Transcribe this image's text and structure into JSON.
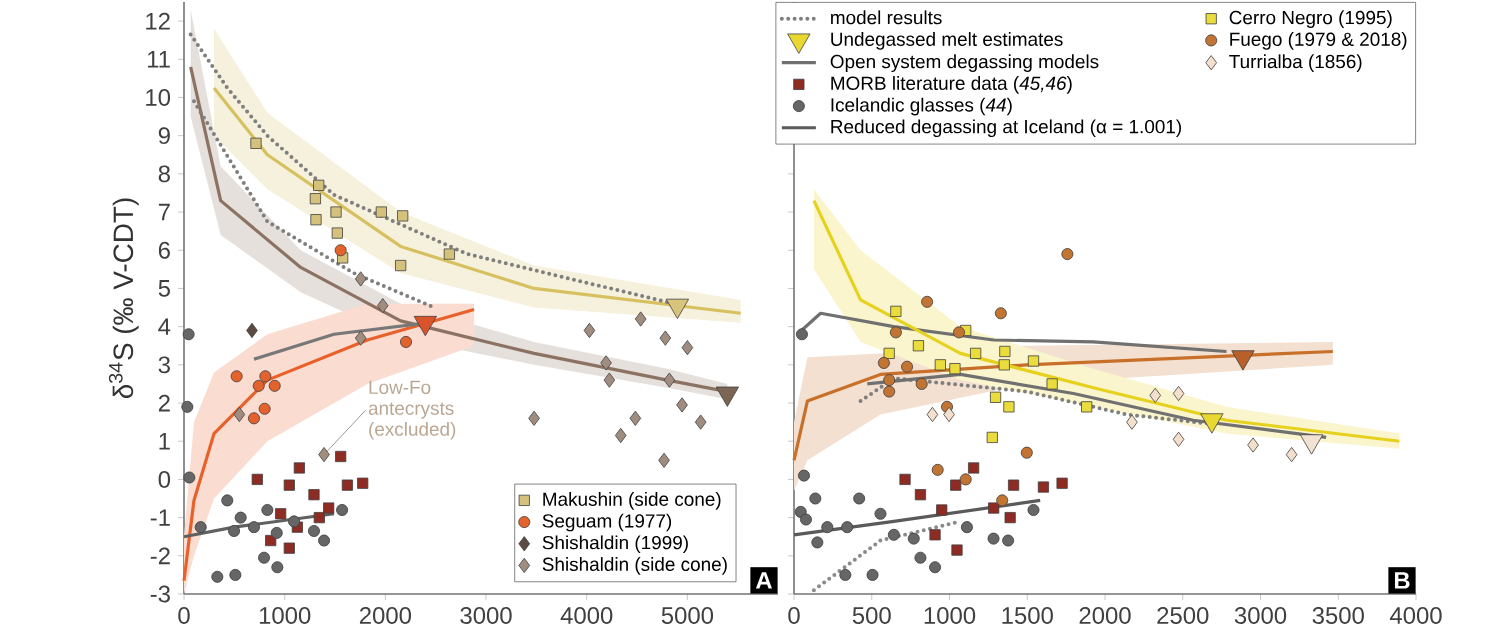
{
  "chart_data": [
    {
      "type": "scatter",
      "ylabel": "δ$^{34}$S (‰ V-CDT)",
      "xlim": [
        0,
        5900
      ],
      "ylim": [
        -3,
        12.5
      ],
      "xticks": [
        0,
        1000,
        2000,
        3000,
        4000,
        5000
      ],
      "yticks": [
        -3,
        -2,
        -1,
        0,
        1,
        2,
        3,
        4,
        5,
        6,
        7,
        8,
        9,
        10,
        11,
        12
      ],
      "legend": "bottom right",
      "annotations": [
        {
          "text": "Low-Fo antecrysts (excluded)",
          "x": 1391,
          "y": 0.65
        },
        "A"
      ],
      "series": [
        {
          "name": "Makushin (side cone)",
          "marker": "square",
          "color": "#d4c27c",
          "x": [
            715,
            1338,
            1305,
            1311,
            1510,
            1523,
            1576,
            1960,
            2172,
            2152,
            2636
          ],
          "values": [
            8.8,
            7.7,
            7.35,
            6.8,
            7.0,
            6.45,
            5.8,
            7.0,
            6.9,
            5.6,
            5.9
          ]
        },
        {
          "name": "Seguam (1977)",
          "marker": "circle",
          "color": "#e4622c",
          "x": [
            523,
            742,
            808,
            901,
            801,
            695,
            1556,
            2205
          ],
          "values": [
            2.7,
            2.45,
            2.7,
            2.45,
            1.85,
            1.6,
            6.0,
            3.6
          ]
        },
        {
          "name": "Shishaldin (1999)",
          "marker": "diamond",
          "color": "#5b4b43",
          "x": [
            675
          ],
          "values": [
            3.9
          ]
        },
        {
          "name": "Shishaldin (side cone)",
          "marker": "diamond",
          "color": "#a08d80",
          "x": [
            1755,
            1974,
            1755,
            550,
            1391,
            3477,
            4027,
            4192,
            4225,
            4536,
            4781,
            4821,
            5000,
            4947,
            5132,
            4483,
            4338,
            4768
          ],
          "values": [
            5.25,
            4.55,
            3.7,
            1.7,
            0.65,
            1.6,
            3.9,
            3.05,
            2.6,
            4.2,
            3.7,
            2.6,
            3.45,
            1.95,
            1.5,
            1.6,
            1.15,
            0.5
          ]
        },
        {
          "marker": "triangle",
          "colors": [
            "#d8c47a",
            "#d9542a",
            "#7d6556"
          ],
          "x": [
            4901,
            2397,
            5397
          ],
          "values": [
            4.55,
            4.1,
            2.25
          ]
        },
        {
          "marker": "square",
          "color": "#8e2b23",
          "x": [
            1146,
            1556,
            728,
            1046,
            1623,
            1775,
            1291,
            1437,
            960,
            1126,
            861,
            1046,
            1344
          ],
          "values": [
            0.3,
            0.6,
            0.0,
            -0.15,
            -0.15,
            -0.1,
            -0.4,
            -0.75,
            -0.9,
            -1.25,
            -1.6,
            -1.8,
            -1.0
          ]
        },
        {
          "marker": "circle",
          "color": "#666666",
          "x": [
            46,
            33,
            53,
            430,
            563,
            695,
            828,
            921,
            1093,
            1291,
            1391,
            795,
            927,
            331,
            510,
            1570,
            166,
            497
          ],
          "values": [
            3.8,
            1.9,
            0.05,
            -0.55,
            -1.0,
            -1.25,
            -0.8,
            -1.4,
            -1.1,
            -1.35,
            -1.6,
            -2.05,
            -2.3,
            -2.55,
            -2.5,
            -0.8,
            -1.25,
            -1.35
          ]
        },
        {
          "type": "line",
          "color": "#d6c060",
          "x": [
            298,
            828,
            2152,
            3477,
            5530
          ],
          "values": [
            10.25,
            8.5,
            6.1,
            5.0,
            4.35
          ],
          "upper": [
            11.8,
            9.6,
            7.0,
            5.6,
            4.7
          ],
          "lower": [
            9.0,
            7.6,
            5.4,
            4.5,
            4.1
          ]
        },
        {
          "type": "line",
          "color": "#8c7262",
          "x": [
            66,
            364,
            1159,
            2152,
            3477,
            4801,
            5397
          ],
          "values": [
            10.8,
            7.3,
            5.55,
            4.15,
            3.3,
            2.6,
            2.3
          ],
          "upper": [
            12.3,
            8.2,
            6.0,
            4.6,
            3.6,
            2.9,
            2.5
          ],
          "lower": [
            9.5,
            6.4,
            4.9,
            3.7,
            3.0,
            2.4,
            2.1
          ]
        },
        {
          "type": "line",
          "color": "#e8602a",
          "x": [
            0,
            99,
            298,
            828,
            1821,
            2881
          ],
          "values": [
            -2.65,
            -0.55,
            1.2,
            2.6,
            3.65,
            4.45
          ],
          "upper": [
            -1.5,
            1.5,
            2.8,
            3.8,
            4.6,
            4.6
          ],
          "lower": [
            -3,
            -2,
            -0.5,
            1.0,
            2.5,
            3.5
          ]
        },
        {
          "type": "line",
          "color": "#7f7f7f",
          "line_style": "dotted",
          "x": [
            66,
            430,
            828,
            1490,
            2815,
            4868
          ],
          "values": [
            11.65,
            10.25,
            9.0,
            7.45,
            5.9,
            4.6
          ]
        },
        {
          "type": "line",
          "color": "#7f7f7f",
          "line_style": "dotted",
          "x": [
            99,
            828,
            1689,
            2483
          ],
          "values": [
            9.9,
            6.75,
            5.4,
            4.5
          ]
        },
        {
          "type": "line",
          "color": "#787878",
          "x": [
            695,
            1490,
            2417
          ],
          "values": [
            3.15,
            3.8,
            4.1
          ]
        },
        {
          "type": "line",
          "color": "#606060",
          "x": [
            0,
            497,
            1490
          ],
          "values": [
            -1.5,
            -1.25,
            -0.9
          ]
        }
      ]
    },
    {
      "type": "scatter",
      "xlim": [
        0,
        4000
      ],
      "ylim": [
        -3,
        12.5
      ],
      "xticks": [
        0,
        500,
        1000,
        1500,
        2000,
        2500,
        3000,
        3500,
        4000
      ],
      "yticks": [
        -3,
        -2,
        -1,
        0,
        1,
        2,
        3,
        4,
        5,
        6,
        7,
        8,
        9,
        10,
        11,
        12
      ],
      "tick_labels": "x",
      "legend": "top right",
      "annotations": [
        "B"
      ],
      "series": [
        {
          "name": "model results",
          "type": "line",
          "color": "#7f7f7f",
          "line_style": "dotted",
          "x": [
            428,
            642,
            1497,
            2139,
            2695
          ],
          "values": [
            2.05,
            2.65,
            2.3,
            1.7,
            1.45
          ]
        },
        {
          "name": "Undegassed melt estimates",
          "marker": "triangle",
          "colors": [
            "#e8d830",
            "#b85f2a",
            "#f2e2d2"
          ],
          "x": [
            2687,
            2887,
            3328
          ],
          "values": [
            1.55,
            3.2,
            1.0
          ]
        },
        {
          "name": "Open system degassing models",
          "type": "line",
          "color": "#707070",
          "x": [
            21,
            171,
            642,
            1284,
            1925,
            2781
          ],
          "values": [
            3.8,
            4.35,
            4.0,
            3.65,
            3.6,
            3.35
          ]
        },
        {
          "name": "MORB literature data (*45,46*)",
          "marker": "square",
          "color": "#8e2b23",
          "x": [
            714,
            813,
            1040,
            1155,
            1412,
            1604,
            1724,
            950,
            1284,
            1048,
            907,
            1390
          ],
          "values": [
            0.0,
            -0.4,
            -0.15,
            0.3,
            -0.15,
            -0.2,
            -0.1,
            -0.8,
            -0.75,
            -1.85,
            -1.45,
            -1.0
          ]
        },
        {
          "name": "Icelandic glasses (*44*)",
          "marker": "circle",
          "color": "#666666",
          "x": [
            64,
            43,
            137,
            419,
            77,
            214,
            342,
            556,
            642,
            770,
            813,
            907,
            1112,
            1283,
            1377,
            1540,
            330,
            505,
            150,
            51
          ],
          "values": [
            0.1,
            -0.85,
            -0.5,
            -0.5,
            -1.05,
            -1.25,
            -1.25,
            -0.9,
            -1.45,
            -1.55,
            -2.05,
            -2.3,
            -1.25,
            -1.55,
            -1.6,
            -0.8,
            -2.5,
            -2.5,
            -1.65,
            3.8
          ]
        },
        {
          "name": "Reduced degassing at Iceland (α = 1.001)",
          "type": "line",
          "color": "#5a5a5a",
          "x": [
            0,
            642,
            1583
          ],
          "values": [
            -1.45,
            -1.1,
            -0.55
          ]
        },
        {
          "name": "Cerro Negro (1995)",
          "marker": "square",
          "color": "#e9dc3c",
          "x": [
            655,
            612,
            800,
            941,
            1035,
            1168,
            1104,
            1356,
            1352,
            1540,
            1660,
            1296,
            1382,
            1882,
            1275
          ],
          "values": [
            4.4,
            3.3,
            3.5,
            3.0,
            2.9,
            3.3,
            3.9,
            3.35,
            3.0,
            3.1,
            2.5,
            2.15,
            1.9,
            1.9,
            1.1
          ]
        },
        {
          "name": "Fuego (1979 & 2018)",
          "marker": "circle",
          "color": "#c27432",
          "x": [
            856,
            1330,
            655,
            1061,
            1758,
            578,
            727,
            612,
            612,
            821,
            984,
            1497,
            924,
            1104,
            1339
          ],
          "values": [
            4.65,
            4.35,
            3.85,
            3.85,
            5.9,
            3.05,
            2.95,
            2.6,
            2.3,
            2.5,
            1.9,
            0.7,
            0.25,
            0.0,
            -0.55
          ]
        },
        {
          "name": "Turrialba (1856)",
          "marker": "diamond",
          "color": "#f3dfcc",
          "x": [
            890,
            997,
            2173,
            2323,
            2473,
            2473,
            2952,
            3200
          ],
          "values": [
            1.7,
            1.7,
            1.5,
            2.2,
            2.25,
            1.05,
            0.9,
            0.65
          ]
        },
        {
          "type": "line",
          "color": "#c8702a",
          "x": [
            0,
            86,
            556,
            1497,
            3465
          ],
          "values": [
            0.5,
            2.05,
            2.75,
            3.0,
            3.35
          ],
          "upper": [
            1.5,
            3.2,
            3.3,
            3.5,
            3.6
          ],
          "lower": [
            -0.3,
            0.5,
            1.7,
            2.5,
            3.0
          ]
        },
        {
          "type": "line",
          "color": "#e6d21e",
          "x": [
            128,
            428,
            1070,
            1925,
            2781,
            3893
          ],
          "values": [
            7.3,
            4.7,
            3.3,
            2.4,
            1.55,
            1.0
          ],
          "upper": [
            7.6,
            6.0,
            4.0,
            2.9,
            1.9,
            1.2
          ],
          "lower": [
            5.5,
            3.6,
            2.6,
            1.9,
            1.2,
            0.8
          ]
        },
        {
          "type": "line",
          "color": "#707070",
          "x": [
            471,
            1070,
            1797,
            2567,
            3422
          ],
          "values": [
            2.5,
            2.75,
            2.25,
            1.55,
            1.1
          ]
        },
        {
          "type": "line",
          "color": "#8a8a8a",
          "line_style": "dotted",
          "x": [
            128,
            556,
            1070
          ],
          "values": [
            -2.9,
            -1.6,
            -1.1
          ]
        }
      ]
    }
  ]
}
